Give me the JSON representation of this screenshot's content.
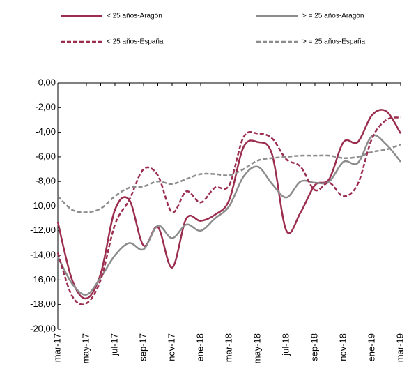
{
  "chart_data": {
    "type": "line",
    "categories": [
      "mar-17",
      null,
      "may-17",
      null,
      "jul-17",
      null,
      "sep-17",
      null,
      "nov-17",
      null,
      "ene-18",
      null,
      "mar-18",
      null,
      "may-18",
      null,
      "jul-18",
      null,
      "sep-18",
      null,
      "nov-18",
      null,
      "ene-19",
      null,
      "mar-19"
    ],
    "series": [
      {
        "name": "< 25 años-Aragón",
        "color": "#9b2d4f",
        "style": "solid",
        "values": [
          -11.3,
          -16.0,
          -17.5,
          -15.5,
          -10.3,
          -9.5,
          -13.2,
          -11.7,
          -15.0,
          -11.0,
          -11.2,
          -10.7,
          -9.5,
          -5.2,
          -4.8,
          -5.8,
          -12.0,
          -10.5,
          -8.3,
          -7.8,
          -4.8,
          -4.8,
          -2.6,
          -2.3,
          -4.1
        ]
      },
      {
        "name": "> = 25 años-Aragón",
        "color": "#8c8c8c",
        "style": "solid",
        "values": [
          -14.1,
          -16.3,
          -17.2,
          -15.8,
          -14.0,
          -13.0,
          -13.5,
          -11.6,
          -12.6,
          -11.5,
          -12.0,
          -11.0,
          -10.0,
          -7.6,
          -6.8,
          -8.2,
          -9.3,
          -8.0,
          -8.1,
          -8.0,
          -6.4,
          -6.5,
          -4.3,
          -5.0,
          -6.4
        ]
      },
      {
        "name": "< 25 años-España",
        "color": "#9b2d4f",
        "style": "dashed",
        "values": [
          -13.8,
          -17.3,
          -17.9,
          -16.0,
          -11.5,
          -9.5,
          -7.0,
          -7.5,
          -10.5,
          -8.8,
          -9.7,
          -8.5,
          -8.3,
          -4.4,
          -4.1,
          -4.5,
          -6.2,
          -6.8,
          -8.7,
          -8.1,
          -9.2,
          -8.2,
          -4.5,
          -3.0,
          -2.8
        ]
      },
      {
        "name": "> = 25 años-España",
        "color": "#8c8c8c",
        "style": "dashed",
        "values": [
          -9.2,
          -10.3,
          -10.5,
          -10.2,
          -9.2,
          -8.5,
          -8.4,
          -8.0,
          -8.2,
          -7.8,
          -7.4,
          -7.4,
          -7.5,
          -7.0,
          -6.3,
          -6.1,
          -6.0,
          -5.9,
          -5.9,
          -5.9,
          -6.1,
          -6.0,
          -5.6,
          -5.4,
          -5.0
        ]
      }
    ],
    "ylim": [
      -20,
      0
    ],
    "yticks": [
      {
        "value": 0,
        "label": "0,00"
      },
      {
        "value": -2,
        "label": "-2,00"
      },
      {
        "value": -4,
        "label": "-4,00"
      },
      {
        "value": -6,
        "label": "-6,00"
      },
      {
        "value": -8,
        "label": "-8,00"
      },
      {
        "value": -10,
        "label": "-10,00"
      },
      {
        "value": -12,
        "label": "-12,00"
      },
      {
        "value": -14,
        "label": "-14,00"
      },
      {
        "value": -16,
        "label": "-16,00"
      },
      {
        "value": -18,
        "label": "-18,00"
      },
      {
        "value": -20,
        "label": "-20,00"
      }
    ],
    "legend": "top",
    "grid": false
  }
}
